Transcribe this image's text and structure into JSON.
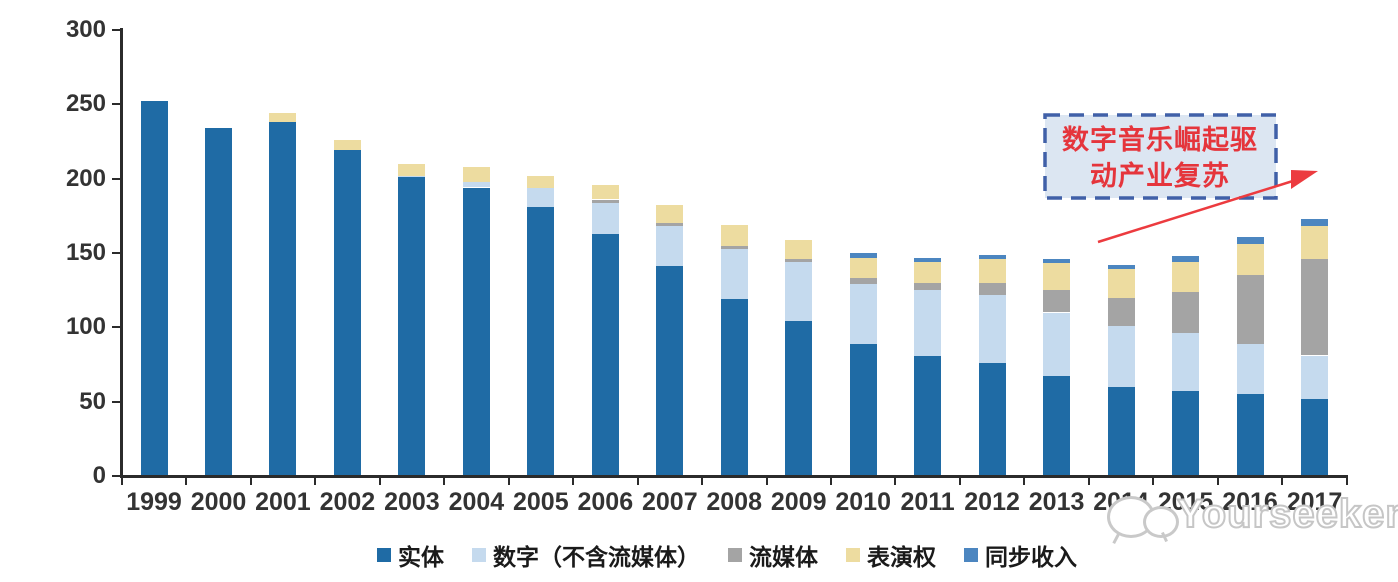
{
  "chart_data": {
    "type": "bar",
    "stacked": true,
    "title": "",
    "xlabel": "",
    "ylabel": "",
    "ylim": [
      0,
      300
    ],
    "y_ticks": [
      0,
      50,
      100,
      150,
      200,
      250,
      300
    ],
    "grid": false,
    "legend_position": "bottom",
    "categories": [
      "1999",
      "2000",
      "2001",
      "2002",
      "2003",
      "2004",
      "2005",
      "2006",
      "2007",
      "2008",
      "2009",
      "2010",
      "2011",
      "2012",
      "2013",
      "2014",
      "2015",
      "2016",
      "2017"
    ],
    "series": [
      {
        "key": "physical",
        "name": "实体",
        "color": "#1F6BA5",
        "values": [
          252,
          234,
          238,
          219,
          201,
          194,
          181,
          163,
          141,
          119,
          104,
          89,
          81,
          76,
          67,
          60,
          57,
          55,
          52
        ]
      },
      {
        "key": "digital-excl-streaming",
        "name": "数字（不含流媒体）",
        "color": "#C5DAEE",
        "values": [
          0,
          0,
          0,
          0,
          1,
          4,
          13,
          21,
          27,
          34,
          40,
          40,
          44,
          46,
          43,
          41,
          39,
          34,
          29
        ]
      },
      {
        "key": "streaming",
        "name": "流媒体",
        "color": "#A4A4A4",
        "values": [
          0,
          0,
          0,
          0,
          0,
          0,
          0,
          2,
          2,
          2,
          2,
          4,
          5,
          8,
          15,
          19,
          28,
          46,
          65
        ]
      },
      {
        "key": "performance-rights",
        "name": "表演权",
        "color": "#EDDCA0",
        "values": [
          0,
          0,
          6,
          7,
          8,
          10,
          8,
          10,
          12,
          14,
          13,
          14,
          14,
          16,
          18,
          19,
          20,
          21,
          22
        ]
      },
      {
        "key": "sync-revenue",
        "name": "同步收入",
        "color": "#4C86C0",
        "values": [
          0,
          0,
          0,
          0,
          0,
          0,
          0,
          0,
          0,
          0,
          0,
          3,
          3,
          3,
          3,
          3,
          4,
          5,
          5
        ]
      }
    ]
  },
  "annotation": {
    "full_text": "数字音乐崛起驱动产业复苏",
    "line1": "数字音乐崛起驱",
    "line2": "动产业复苏",
    "border_color": "#4060A8",
    "fill_color": "#DCE6F2",
    "text_color": "#E5353C",
    "arrow_color": "#EC3B3F"
  },
  "watermark": {
    "text": "Yourseeker",
    "icon": "chat-bubbles-icon",
    "color": "#C6C6C6"
  },
  "axis_colors": {
    "line": "#2B2B2B",
    "tick_label": "#333333"
  }
}
